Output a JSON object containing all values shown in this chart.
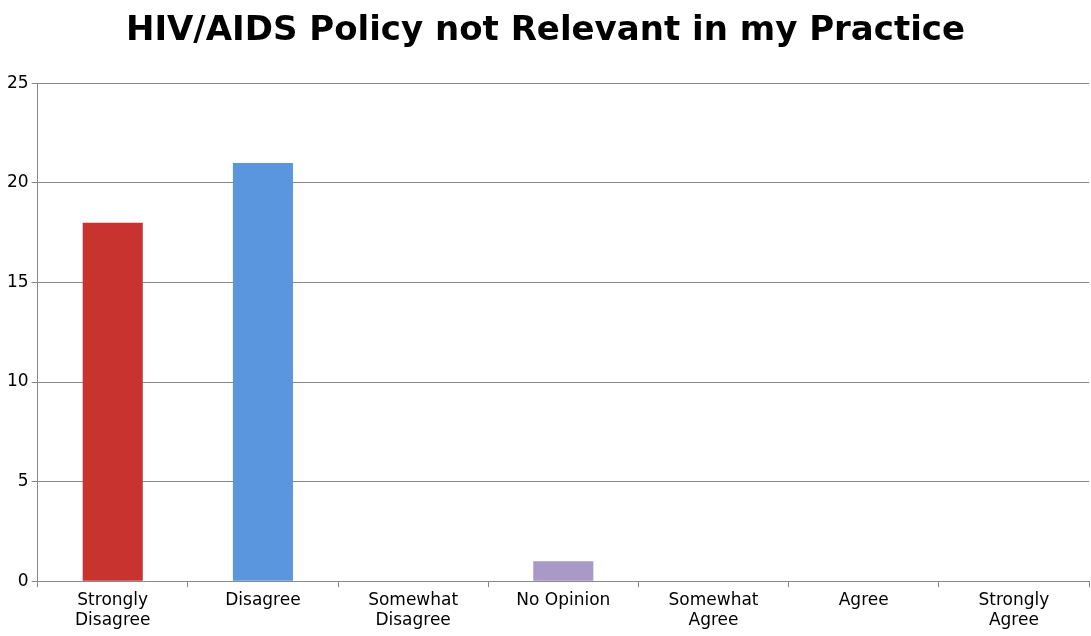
{
  "chart_data": {
    "type": "bar",
    "title": "HIV/AIDS Policy not Relevant in my Practice",
    "categories": [
      "Strongly\nDisagree",
      "Disagree",
      "Somewhat\nDisagree",
      "No Opinion",
      "Somewhat\nAgree",
      "Agree",
      "Strongly\nAgree"
    ],
    "values": [
      18,
      21,
      0,
      1,
      0,
      0,
      0
    ],
    "colors": [
      "#c8322f",
      "#5a96de",
      "#8c8c8c",
      "#a899c6",
      "#8c8c8c",
      "#8c8c8c",
      "#8c8c8c"
    ],
    "ylim": [
      0,
      25
    ],
    "yticks": [
      0,
      5,
      10,
      15,
      20,
      25
    ],
    "grid": "y",
    "legend": false
  }
}
